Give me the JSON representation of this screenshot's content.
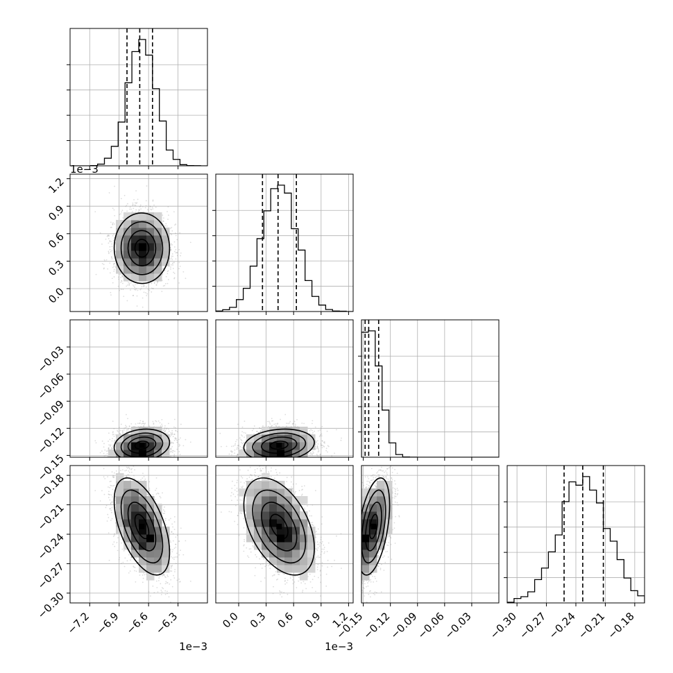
{
  "chart_data": {
    "type": "corner",
    "parameters": [
      {
        "range": [
          -0.0074,
          -0.006
        ],
        "ticks": [
          -0.0072,
          -0.0069,
          -0.0066,
          -0.0063
        ],
        "tick_labels": [
          "−7.2",
          "−6.9",
          "−6.6",
          "−6.3"
        ],
        "offset_label": "1e−3",
        "mean": -0.00667,
        "sd": 0.00014,
        "quantiles": [
          -0.00682,
          -0.00669,
          -0.00656
        ]
      },
      {
        "range": [
          -0.00025,
          0.00125
        ],
        "ticks": [
          0.0,
          0.0003,
          0.0006,
          0.0009,
          0.0012
        ],
        "tick_labels": [
          "0.0",
          "0.3",
          "0.6",
          "0.9",
          "1.2"
        ],
        "offset_label": "1e−3",
        "mean": 0.00044,
        "sd": 0.00019,
        "quantiles": [
          0.00026,
          0.00043,
          0.00063
        ]
      },
      {
        "range": [
          -0.152,
          0.0
        ],
        "ticks": [
          -0.15,
          -0.12,
          -0.09,
          -0.06,
          -0.03
        ],
        "tick_labels": [
          "−0.15",
          "−0.12",
          "−0.09",
          "−0.06",
          "−0.03"
        ],
        "offset_label": "",
        "mean": -0.139,
        "sd": 0.012,
        "quantiles": [
          -0.148,
          -0.144,
          -0.133
        ]
      },
      {
        "range": [
          -0.31,
          -0.17
        ],
        "ticks": [
          -0.3,
          -0.27,
          -0.24,
          -0.21,
          -0.18
        ],
        "tick_labels": [
          "−0.30",
          "−0.27",
          "−0.24",
          "−0.21",
          "−0.18"
        ],
        "offset_label": "",
        "mean": -0.232,
        "sd": 0.02,
        "quantiles": [
          -0.252,
          -0.233,
          -0.212
        ]
      }
    ],
    "correlations": [
      [
        0,
        1,
        0.0
      ],
      [
        0,
        2,
        0.2
      ],
      [
        1,
        2,
        0.2
      ],
      [
        0,
        3,
        -0.65
      ],
      [
        1,
        3,
        -0.55
      ],
      [
        2,
        3,
        0.6
      ]
    ],
    "histogram_bins": 20,
    "contour_levels": [
      0.5,
      1.0,
      1.5,
      2.0
    ],
    "grid": true,
    "colors": {
      "scatter": "#9a9a9a",
      "line": "#000000",
      "grid": "#b0b0b0"
    }
  }
}
